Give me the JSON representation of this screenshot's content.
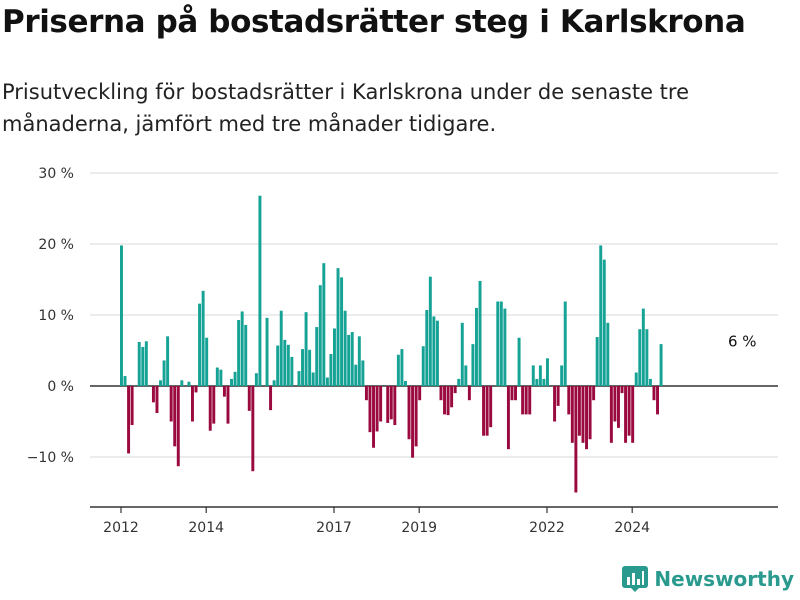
{
  "header": {
    "title": "Priserna på bostadsrätter steg i Karlskrona",
    "subtitle": "Prisutveckling för bostadsrätter i Karlskrona under de senaste tre månaderna, jämfört med tre månader tidigare."
  },
  "brand": {
    "name": "Newsworthy"
  },
  "colors": {
    "positive": "#16a395",
    "negative": "#9b0a3f",
    "grid": "#d9d9d9",
    "axis": "#333333"
  },
  "chart_data": {
    "type": "bar",
    "title": "Priserna på bostadsrätter steg i Karlskrona",
    "subtitle": "Prisutveckling för bostadsrätter i Karlskrona under de senaste tre månaderna, jämfört med tre månader tidigare.",
    "unit": "%",
    "ylim": [
      -17,
      30
    ],
    "yticks": [
      -10,
      0,
      10,
      20,
      30
    ],
    "ytick_labels": [
      "−10 %",
      "0 %",
      "10 %",
      "20 %",
      "30 %"
    ],
    "x_start": "2012-01",
    "xticks": [
      "2012",
      "2014",
      "2017",
      "2019",
      "2022",
      "2024"
    ],
    "grid": true,
    "annotation": {
      "label": "6 %",
      "value": 6
    },
    "values": [
      19.8,
      1.4,
      -9.5,
      -5.5,
      0,
      6.2,
      5.5,
      6.3,
      0,
      -2.3,
      -3.8,
      0.8,
      3.6,
      7.0,
      -5.0,
      -8.5,
      -11.3,
      0.8,
      0,
      0.6,
      -5.0,
      -0.9,
      11.6,
      13.4,
      6.8,
      -6.3,
      -5.3,
      2.6,
      2.3,
      -1.5,
      -5.3,
      1.0,
      2.0,
      9.3,
      10.5,
      8.6,
      -3.5,
      -12.0,
      1.8,
      26.8,
      0,
      9.6,
      -3.4,
      0.8,
      5.7,
      10.6,
      6.5,
      5.8,
      4.1,
      0,
      2.1,
      5.2,
      10.4,
      5.1,
      1.9,
      8.3,
      14.2,
      17.3,
      1.2,
      4.5,
      8.1,
      16.6,
      15.3,
      10.6,
      7.2,
      7.6,
      3.0,
      7.0,
      3.6,
      -2.0,
      -6.5,
      -8.7,
      -6.4,
      -5.0,
      0,
      -5.2,
      -4.7,
      -5.5,
      4.4,
      5.2,
      0.7,
      -7.5,
      -10.1,
      -8.5,
      -2.0,
      5.6,
      10.7,
      15.4,
      9.8,
      9.2,
      -2.0,
      -4.0,
      -4.1,
      -3.0,
      -1.0,
      1.0,
      8.9,
      2.9,
      -2.0,
      5.9,
      11.0,
      14.8,
      -7.0,
      -7.0,
      -5.8,
      0,
      11.9,
      11.9,
      10.9,
      -8.9,
      -2.0,
      -2.0,
      6.8,
      -4.0,
      -4.0,
      -4.0,
      2.9,
      1.0,
      2.9,
      1.0,
      3.9,
      0,
      -5.0,
      -2.8,
      2.9,
      11.9,
      -4.0,
      -8.0,
      -15.0,
      -7.0,
      -8.0,
      -8.9,
      -7.5,
      -2.0,
      6.9,
      19.8,
      17.8,
      8.9,
      -8.0,
      -5.0,
      -5.9,
      -1.0,
      -8.0,
      -7.0,
      -8.0,
      1.9,
      8.0,
      10.9,
      8.0,
      1.0,
      -2.0,
      -4.0,
      5.9
    ]
  }
}
